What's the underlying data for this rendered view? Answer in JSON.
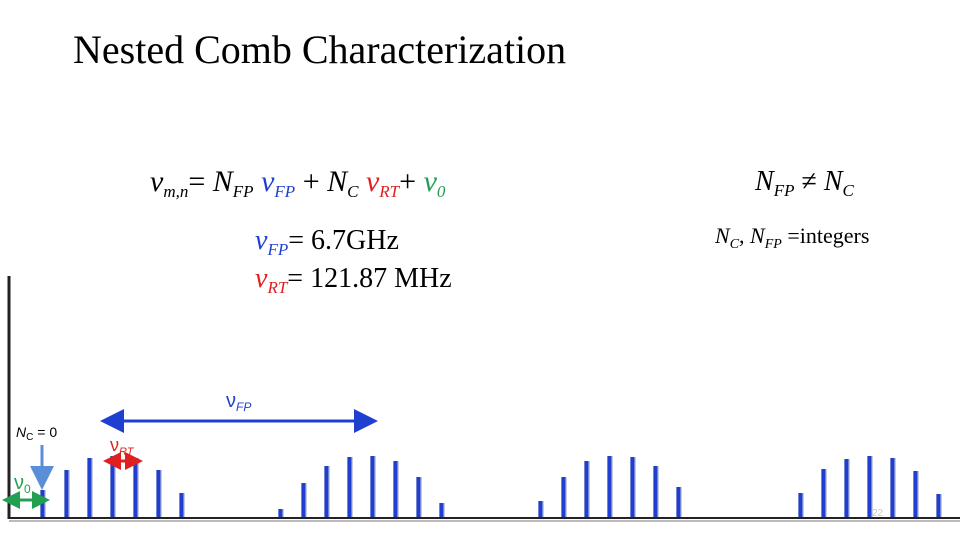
{
  "slide": {
    "title": "Nested Comb Characterization",
    "slide_number": "22"
  },
  "equations": {
    "main": {
      "lhs_symbol": "ν",
      "lhs_sub": "m,n",
      "equals": "=",
      "n_fp": "N",
      "n_fp_sub": "FP",
      "nu_fp": "ν",
      "nu_fp_sub": "FP",
      "plus1": "+",
      "n_c": "N",
      "n_c_sub": "C",
      "nu_rt": "ν",
      "nu_rt_sub": "RT",
      "plus2": "+",
      "nu0": "ν",
      "nu0_sub": "0"
    },
    "fp_value": {
      "symbol": "ν",
      "sub": "FP",
      "equals": "=",
      "value": "6.7GHz"
    },
    "rt_value": {
      "symbol": "ν",
      "sub": "RT",
      "equals": "=",
      "value": "121.87 MHz"
    },
    "inequality": {
      "left": "N",
      "left_sub": "FP",
      "op": "≠",
      "right": "N",
      "right_sub": "C"
    },
    "integers": {
      "a": "N",
      "a_sub": "C",
      "comma": ",",
      "b": "N",
      "b_sub": "FP",
      "equals": "=",
      "text": "integers"
    }
  },
  "diagram": {
    "nc_label": {
      "symbol": "N",
      "sub": "C",
      "text": "= 0"
    },
    "fp_label": {
      "symbol": "ν",
      "sub": "FP"
    },
    "rt_label": {
      "symbol": "ν",
      "sub": "RT"
    },
    "v0_label": {
      "symbol": "ν",
      "sub": "0"
    },
    "colors": {
      "comb": "#1f3fd0",
      "fp_arrow": "#1f3fd0",
      "rt_arrow": "#e02020",
      "v0_arrow": "#21a051",
      "pointer": "#5a8fd8",
      "axis": "#222222"
    }
  }
}
